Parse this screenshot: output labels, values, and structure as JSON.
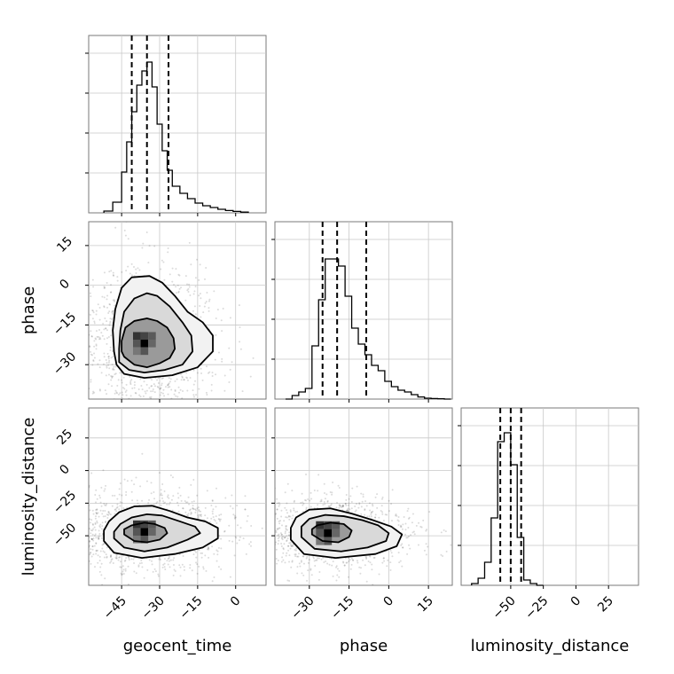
{
  "chart_data": {
    "type": "corner",
    "parameters": [
      "geocent_time",
      "phase",
      "luminosity_distance"
    ],
    "ticks": {
      "geocent_time": [
        -45,
        -30,
        -15,
        0
      ],
      "phase": [
        -30,
        -15,
        0,
        15
      ],
      "luminosity_distance": [
        -50,
        -25,
        0,
        25
      ]
    },
    "ranges": {
      "geocent_time": [
        -58,
        12
      ],
      "phase": [
        -43,
        24
      ],
      "luminosity_distance": [
        -88,
        48
      ]
    },
    "quantiles": {
      "geocent_time": [
        -41,
        -35,
        -26.5
      ],
      "phase": [
        -25,
        -19.5,
        -8.5
      ],
      "luminosity_distance": [
        -58,
        -50,
        -42
      ]
    },
    "histograms": {
      "geocent_time": {
        "edges": [
          -52,
          -48.5,
          -45,
          -43,
          -41,
          -39,
          -37,
          -35,
          -33,
          -31,
          -29,
          -27,
          -25,
          -22,
          -19,
          -16,
          -13,
          -10,
          -7,
          -4,
          -1,
          2,
          5
        ],
        "counts": [
          0.01,
          0.06,
          0.23,
          0.4,
          0.57,
          0.72,
          0.8,
          0.85,
          0.71,
          0.5,
          0.35,
          0.24,
          0.15,
          0.11,
          0.08,
          0.055,
          0.04,
          0.03,
          0.02,
          0.013,
          0.008,
          0.004
        ]
      },
      "phase": {
        "edges": [
          -39,
          -36.5,
          -34,
          -31.5,
          -29,
          -26.5,
          -24,
          -21.5,
          -19,
          -16.5,
          -14,
          -11.5,
          -9,
          -6.5,
          -4,
          -1.5,
          1,
          3.5,
          6,
          8.5,
          11,
          13.5,
          16,
          18.5,
          21,
          23.5
        ],
        "counts": [
          0.0,
          0.02,
          0.04,
          0.06,
          0.3,
          0.56,
          0.79,
          0.79,
          0.75,
          0.58,
          0.4,
          0.31,
          0.25,
          0.19,
          0.16,
          0.1,
          0.07,
          0.05,
          0.04,
          0.025,
          0.012,
          0.005,
          0.003,
          0.002,
          0.0
        ]
      },
      "luminosity_distance": {
        "edges": [
          -80,
          -75,
          -70,
          -65,
          -60,
          -55,
          -50,
          -45,
          -40,
          -35,
          -30,
          -25
        ],
        "counts": [
          0.01,
          0.04,
          0.13,
          0.38,
          0.81,
          0.86,
          0.68,
          0.27,
          0.03,
          0.01,
          0.0
        ]
      }
    },
    "pairs": [
      {
        "x": "geocent_time",
        "y": "phase",
        "peak": [
          -36,
          -22
        ],
        "contours": [
          [
            [
              -44,
              -27
            ],
            [
              -40,
              -30
            ],
            [
              -35,
              -31
            ],
            [
              -30,
              -29.5
            ],
            [
              -26,
              -27.5
            ],
            [
              -24,
              -24
            ],
            [
              -24.5,
              -20
            ],
            [
              -27,
              -16
            ],
            [
              -31,
              -13.5
            ],
            [
              -35,
              -12.5
            ],
            [
              -40,
              -13.5
            ],
            [
              -43.5,
              -16
            ],
            [
              -45,
              -21
            ],
            [
              -45,
              -25
            ]
          ],
          [
            [
              -46,
              -29
            ],
            [
              -42,
              -32
            ],
            [
              -36,
              -33
            ],
            [
              -28,
              -32
            ],
            [
              -21,
              -30
            ],
            [
              -17,
              -25
            ],
            [
              -17.5,
              -19
            ],
            [
              -21,
              -14
            ],
            [
              -26,
              -8
            ],
            [
              -31,
              -4
            ],
            [
              -35,
              -3
            ],
            [
              -40,
              -5
            ],
            [
              -44,
              -10
            ],
            [
              -45.5,
              -17
            ],
            [
              -46,
              -24
            ]
          ],
          [
            [
              -47,
              -30
            ],
            [
              -44,
              -33.5
            ],
            [
              -36,
              -35
            ],
            [
              -25,
              -34
            ],
            [
              -15,
              -31
            ],
            [
              -9,
              -25
            ],
            [
              -9,
              -19
            ],
            [
              -13,
              -14
            ],
            [
              -19,
              -10
            ],
            [
              -24,
              -4
            ],
            [
              -29,
              1
            ],
            [
              -34,
              3.5
            ],
            [
              -41,
              3
            ],
            [
              -45,
              -1
            ],
            [
              -47.5,
              -9
            ],
            [
              -48.5,
              -17
            ],
            [
              -48,
              -25
            ]
          ]
        ]
      },
      {
        "x": "geocent_time",
        "y": "luminosity_distance",
        "peak": [
          -36,
          -47
        ],
        "contours": [
          [
            [
              -44,
              -49
            ],
            [
              -40,
              -54
            ],
            [
              -35,
              -55
            ],
            [
              -30,
              -53
            ],
            [
              -27,
              -48
            ],
            [
              -28,
              -44
            ],
            [
              -32,
              -41
            ],
            [
              -36,
              -40
            ],
            [
              -41,
              -42
            ],
            [
              -44,
              -45
            ]
          ],
          [
            [
              -48,
              -52
            ],
            [
              -44,
              -59
            ],
            [
              -36,
              -62
            ],
            [
              -27,
              -59
            ],
            [
              -19,
              -53
            ],
            [
              -14,
              -48
            ],
            [
              -16,
              -43
            ],
            [
              -22,
              -39
            ],
            [
              -29,
              -34.5
            ],
            [
              -35,
              -33.5
            ],
            [
              -41,
              -36
            ],
            [
              -45.5,
              -41
            ],
            [
              -48,
              -47
            ]
          ],
          [
            [
              -52,
              -54
            ],
            [
              -48,
              -63
            ],
            [
              -37,
              -67
            ],
            [
              -24,
              -64
            ],
            [
              -13,
              -59
            ],
            [
              -7,
              -52
            ],
            [
              -7,
              -44
            ],
            [
              -12,
              -39
            ],
            [
              -19,
              -36
            ],
            [
              -26,
              -31
            ],
            [
              -33,
              -27
            ],
            [
              -40,
              -27.5
            ],
            [
              -46,
              -32
            ],
            [
              -50,
              -39
            ],
            [
              -52,
              -46
            ]
          ]
        ]
      },
      {
        "x": "phase",
        "y": "luminosity_distance",
        "peak": [
          -23,
          -48
        ],
        "contours": [
          [
            [
              -29,
              -49
            ],
            [
              -25,
              -54
            ],
            [
              -19,
              -55
            ],
            [
              -15,
              -51
            ],
            [
              -14,
              -46
            ],
            [
              -17,
              -41
            ],
            [
              -22,
              -40
            ],
            [
              -27,
              -42
            ],
            [
              -29,
              -45
            ]
          ],
          [
            [
              -33,
              -51
            ],
            [
              -28,
              -60
            ],
            [
              -18,
              -62
            ],
            [
              -8,
              -59
            ],
            [
              -1,
              -54
            ],
            [
              0,
              -48
            ],
            [
              -4,
              -42
            ],
            [
              -10,
              -38
            ],
            [
              -17,
              -35
            ],
            [
              -24,
              -34
            ],
            [
              -30,
              -37
            ],
            [
              -33,
              -43
            ]
          ],
          [
            [
              -37,
              -53
            ],
            [
              -32,
              -64
            ],
            [
              -20,
              -67
            ],
            [
              -5,
              -64
            ],
            [
              3,
              -58
            ],
            [
              5,
              -49
            ],
            [
              1,
              -43
            ],
            [
              -6,
              -38
            ],
            [
              -14,
              -33
            ],
            [
              -22,
              -29
            ],
            [
              -30,
              -30
            ],
            [
              -35,
              -36
            ],
            [
              -37,
              -44
            ]
          ]
        ]
      }
    ]
  }
}
